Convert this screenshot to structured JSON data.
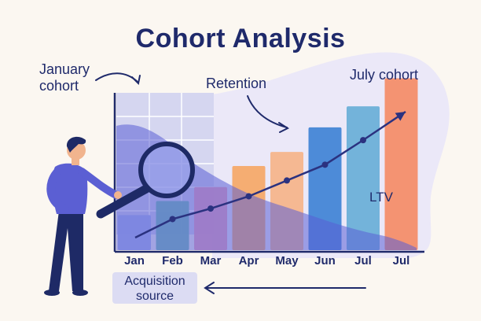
{
  "title": "Cohort Analysis",
  "annotations": {
    "january_cohort": "January cohort",
    "retention": "Retention",
    "july_cohort": "July cohort",
    "ltv": "LTV"
  },
  "acquisition_source": "Acquisition source",
  "colors": {
    "title": "#1f2a6b",
    "retention_area": "#5a5fd6",
    "trend_line": "#2b3280",
    "background": "#fbf7f1"
  },
  "chart_data": {
    "type": "bar",
    "categories": [
      "Jan",
      "Feb",
      "Mar",
      "Apr",
      "May",
      "Jun",
      "Jul",
      "Jul"
    ],
    "series": [
      {
        "values": [
          1,
          1.4,
          1.8,
          2.4,
          2.8,
          3.5,
          4.1,
          4.9
        ]
      }
    ],
    "bar_colors": [
      "#a9b6ee",
      "#72c0b3",
      "#f0a0b8",
      "#f6aa6a",
      "#f5b58c",
      "#4586d6",
      "#6db0d8",
      "#f48e6a"
    ],
    "line_values": [
      0.22,
      0.55,
      0.85,
      1.2,
      1.65,
      2.1,
      2.8,
      3.65
    ],
    "ylim": [
      0,
      5
    ],
    "title": "",
    "xlabel": "",
    "ylabel": ""
  }
}
